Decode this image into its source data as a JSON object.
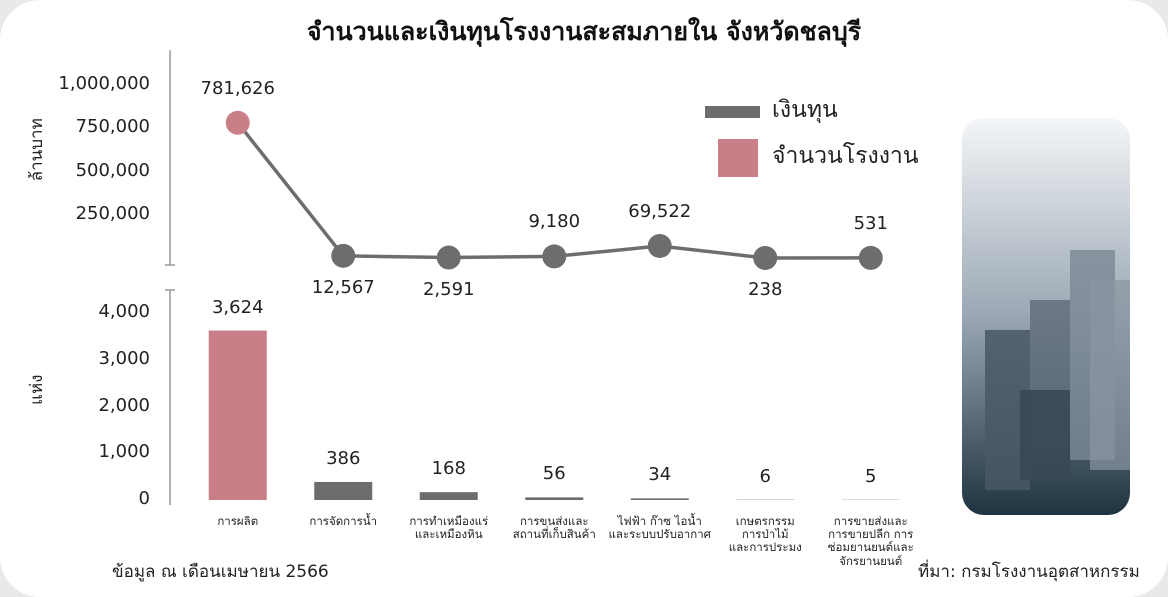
{
  "title": "จำนวนและเงินทุนโรงงานสะสมภายใน จังหวัดชลบุรี",
  "note": "ข้อมูล ณ เดือนเมษายน 2566",
  "source": "ที่มา: กรมโรงงานอุตสาหกรรม",
  "chart_data": [
    {
      "type": "line",
      "y_label": "ล้านบาท",
      "series": [
        {
          "name": "เงินทุน",
          "color": "#6d6d6d",
          "values": [
            781626,
            12567,
            2591,
            9180,
            69522,
            238,
            531
          ],
          "value_labels": [
            "781,626",
            "12,567",
            "2,591",
            "9,180",
            "69,522",
            "238",
            "531"
          ]
        }
      ],
      "ylim": [
        0,
        1000000
      ],
      "yticks": [
        {
          "value": 1000000,
          "label": "1,000,000"
        },
        {
          "value": 750000,
          "label": "750,000"
        },
        {
          "value": 500000,
          "label": "500,000"
        },
        {
          "value": 250000,
          "label": "250,000"
        }
      ]
    },
    {
      "type": "bar",
      "y_label": "แห่ง",
      "categories": [
        "การผลิต",
        "การจัดการน้ำ",
        "การทำเหมืองแร่\nและเหมืองหิน",
        "การขนส่งและ\nสถานที่เก็บสินค้า",
        "ไฟฟ้า ก๊าซ ไอน้ำ\nและระบบปรับอากาศ",
        "เกษตรกรรม\nการป่าไม้\nและการประมง",
        "การขายส่งและ\nการขายปลีก การ\nซ่อมยานยนต์และ\nจักรยานยนต์"
      ],
      "series": [
        {
          "name": "จำนวนโรงงาน",
          "color": "#c97f88",
          "values": [
            3624,
            386,
            168,
            56,
            34,
            6,
            5
          ],
          "value_labels": [
            "3,624",
            "386",
            "168",
            "56",
            "34",
            "6",
            "5"
          ]
        }
      ],
      "colors": [
        "#c97f88",
        "#6d6d6d",
        "#6d6d6d",
        "#6d6d6d",
        "#6d6d6d",
        "#6d6d6d",
        "#6d6d6d"
      ],
      "ylim": [
        0,
        4000
      ],
      "yticks": [
        0,
        {
          "value": 1000,
          "label": "1,000"
        },
        {
          "value": 2000,
          "label": "2,000"
        },
        {
          "value": 3000,
          "label": "3,000"
        },
        {
          "value": 4000,
          "label": "4,000"
        }
      ]
    }
  ]
}
